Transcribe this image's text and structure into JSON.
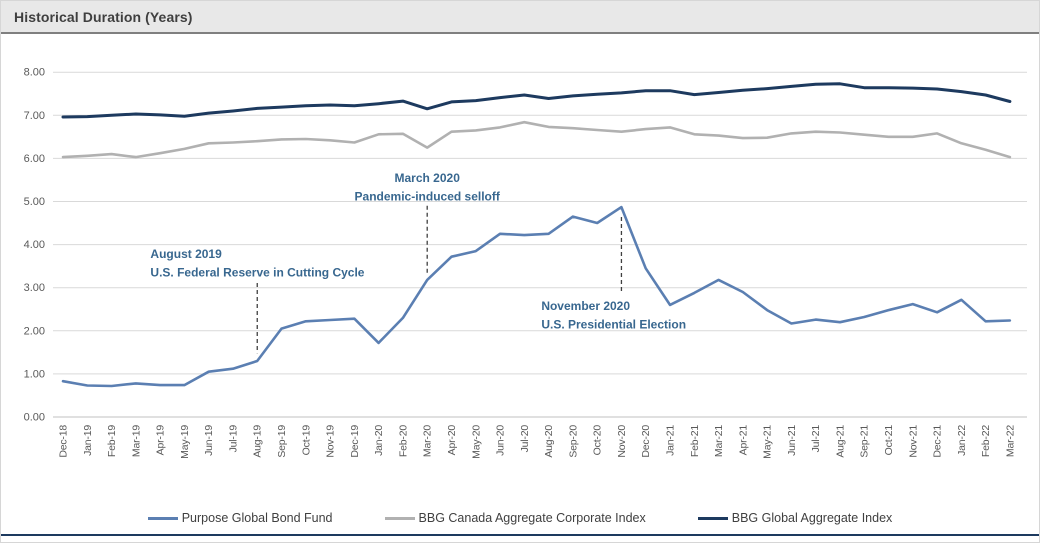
{
  "header": {
    "title": "Historical Duration (Years)"
  },
  "style": {
    "grid_line": "#d9d9d9",
    "zero_line": "#c0c0c0",
    "tick_text": "#595959",
    "annotation_text": "#38678f",
    "annotation_dash": "#3f3f3f",
    "header_bg": "#e8e8e8",
    "header_border": "#7f7f7f",
    "bottom_rule": "#1d3a5f"
  },
  "chart_data": {
    "type": "line",
    "title": "Historical Duration (Years)",
    "xlabel": "",
    "ylabel": "",
    "ylim": [
      0,
      8
    ],
    "ytick_step": 1,
    "grid": true,
    "legend_position": "bottom",
    "x": [
      "Dec-18",
      "Jan-19",
      "Feb-19",
      "Mar-19",
      "Apr-19",
      "May-19",
      "Jun-19",
      "Jul-19",
      "Aug-19",
      "Sep-19",
      "Oct-19",
      "Nov-19",
      "Dec-19",
      "Jan-20",
      "Feb-20",
      "Mar-20",
      "Apr-20",
      "May-20",
      "Jun-20",
      "Jul-20",
      "Aug-20",
      "Sep-20",
      "Oct-20",
      "Nov-20",
      "Dec-20",
      "Jan-21",
      "Feb-21",
      "Mar-21",
      "Apr-21",
      "May-21",
      "Jun-21",
      "Jul-21",
      "Aug-21",
      "Sep-21",
      "Oct-21",
      "Nov-21",
      "Dec-21",
      "Jan-22",
      "Feb-22",
      "Mar-22"
    ],
    "series": [
      {
        "name": "Purpose Global Bond Fund",
        "color": "#5b7fb2",
        "width": 2.6,
        "values": [
          0.83,
          0.73,
          0.72,
          0.78,
          0.74,
          0.74,
          1.05,
          1.12,
          1.3,
          2.05,
          2.22,
          2.25,
          2.28,
          1.72,
          2.3,
          3.18,
          3.72,
          3.85,
          4.25,
          4.22,
          4.25,
          4.65,
          4.5,
          4.87,
          3.45,
          2.6,
          2.88,
          3.18,
          2.9,
          2.48,
          2.17,
          2.26,
          2.2,
          2.32,
          2.48,
          2.62,
          2.43,
          2.72,
          2.22,
          2.24
        ]
      },
      {
        "name": "BBG Canada Aggregate Corporate Index",
        "color": "#b1b1b1",
        "width": 2.6,
        "values": [
          6.03,
          6.06,
          6.1,
          6.03,
          6.12,
          6.22,
          6.35,
          6.37,
          6.4,
          6.44,
          6.45,
          6.42,
          6.37,
          6.56,
          6.57,
          6.25,
          6.62,
          6.65,
          6.72,
          6.84,
          6.73,
          6.7,
          6.66,
          6.62,
          6.68,
          6.72,
          6.56,
          6.53,
          6.47,
          6.48,
          6.58,
          6.62,
          6.6,
          6.55,
          6.5,
          6.5,
          6.58,
          6.35,
          6.2,
          6.03
        ]
      },
      {
        "name": "BBG Global Aggregate Index",
        "color": "#1d3a5f",
        "width": 3,
        "values": [
          6.96,
          6.97,
          7.0,
          7.03,
          7.01,
          6.98,
          7.05,
          7.1,
          7.16,
          7.19,
          7.22,
          7.24,
          7.22,
          7.27,
          7.33,
          7.15,
          7.31,
          7.34,
          7.41,
          7.47,
          7.39,
          7.45,
          7.49,
          7.52,
          7.57,
          7.57,
          7.48,
          7.53,
          7.58,
          7.62,
          7.67,
          7.72,
          7.73,
          7.64,
          7.64,
          7.63,
          7.61,
          7.55,
          7.47,
          7.32
        ]
      }
    ],
    "annotations": [
      {
        "month": "Aug-19",
        "lines": [
          "August 2019",
          "U.S. Federal Reserve in Cutting Cycle"
        ],
        "align": "start",
        "text_dx_months": -4.4,
        "text_top_value": 3.69,
        "dash_top_value": 3.11,
        "dash_bottom_value": 1.48
      },
      {
        "month": "Mar-20",
        "lines": [
          "March 2020",
          "Pandemic-induced selloff"
        ],
        "align": "middle",
        "text_dx_months": 0,
        "text_top_value": 5.45,
        "dash_top_value": 4.9,
        "dash_bottom_value": 3.34
      },
      {
        "month": "Nov-20",
        "lines": [
          "November 2020",
          "U.S. Presidential Election"
        ],
        "align": "start",
        "text_dx_months": -3.3,
        "text_top_value": 2.48,
        "dash_top_value": 4.64,
        "dash_bottom_value": 2.9
      }
    ]
  }
}
